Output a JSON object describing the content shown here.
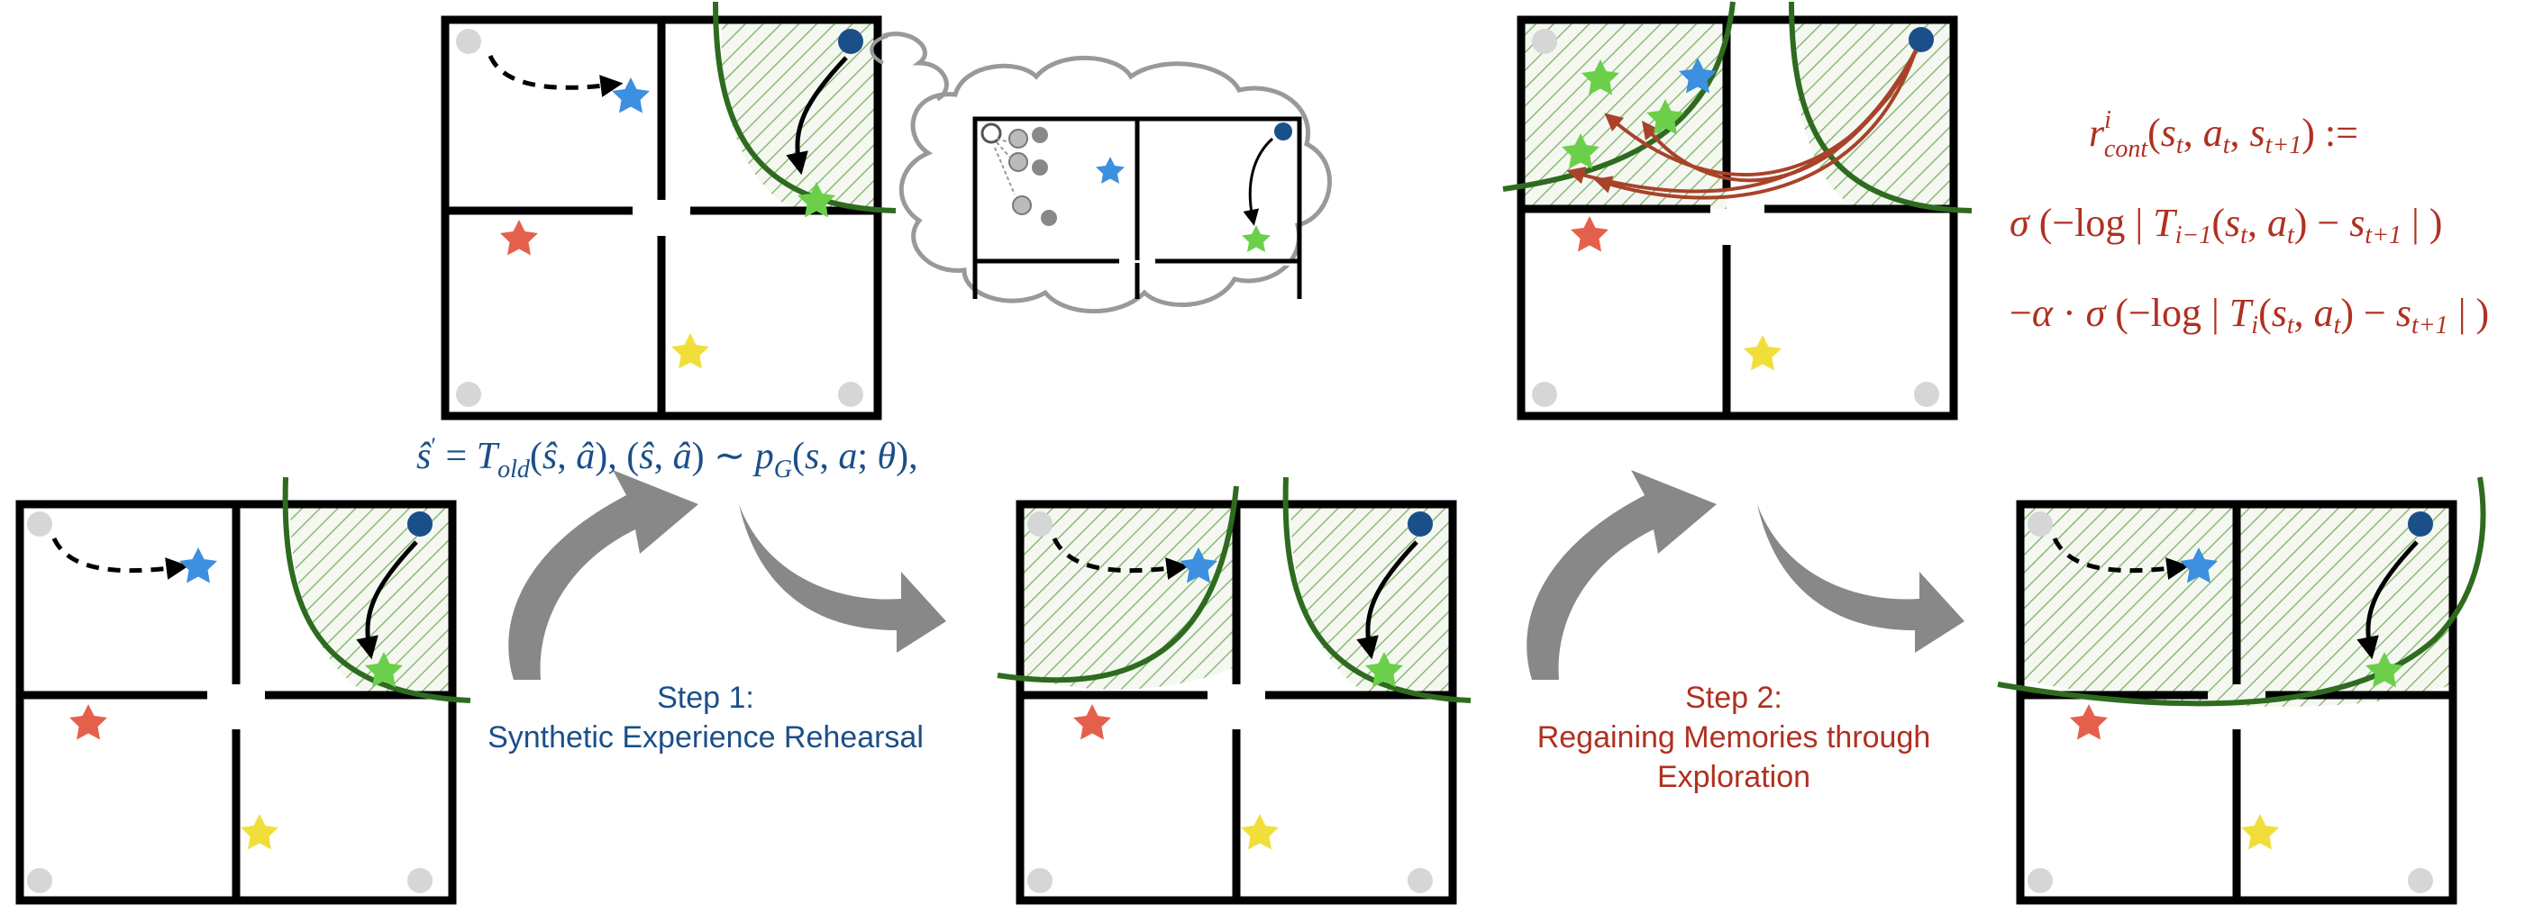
{
  "step1": {
    "line1": "Step 1:",
    "line2": "Synthetic Experience Rehearsal"
  },
  "step2": {
    "line1": "Step 2:",
    "line2": "Regaining Memories through",
    "line3": "Exploration"
  },
  "colors": {
    "wall": "#000000",
    "boundary": "#2e6b1f",
    "hatch": "#7fa86a",
    "agent": "#1b4f8a",
    "corner": "#d6d6d6",
    "star_blue": "#3d8fe0",
    "star_green": "#6ccf4a",
    "star_red": "#e5604c",
    "star_yellow": "#f2de3a",
    "flow_arrow": "#888888",
    "red_arrow": "#a8432a",
    "text_blue": "#1b4f8a",
    "text_red": "#b03020"
  }
}
